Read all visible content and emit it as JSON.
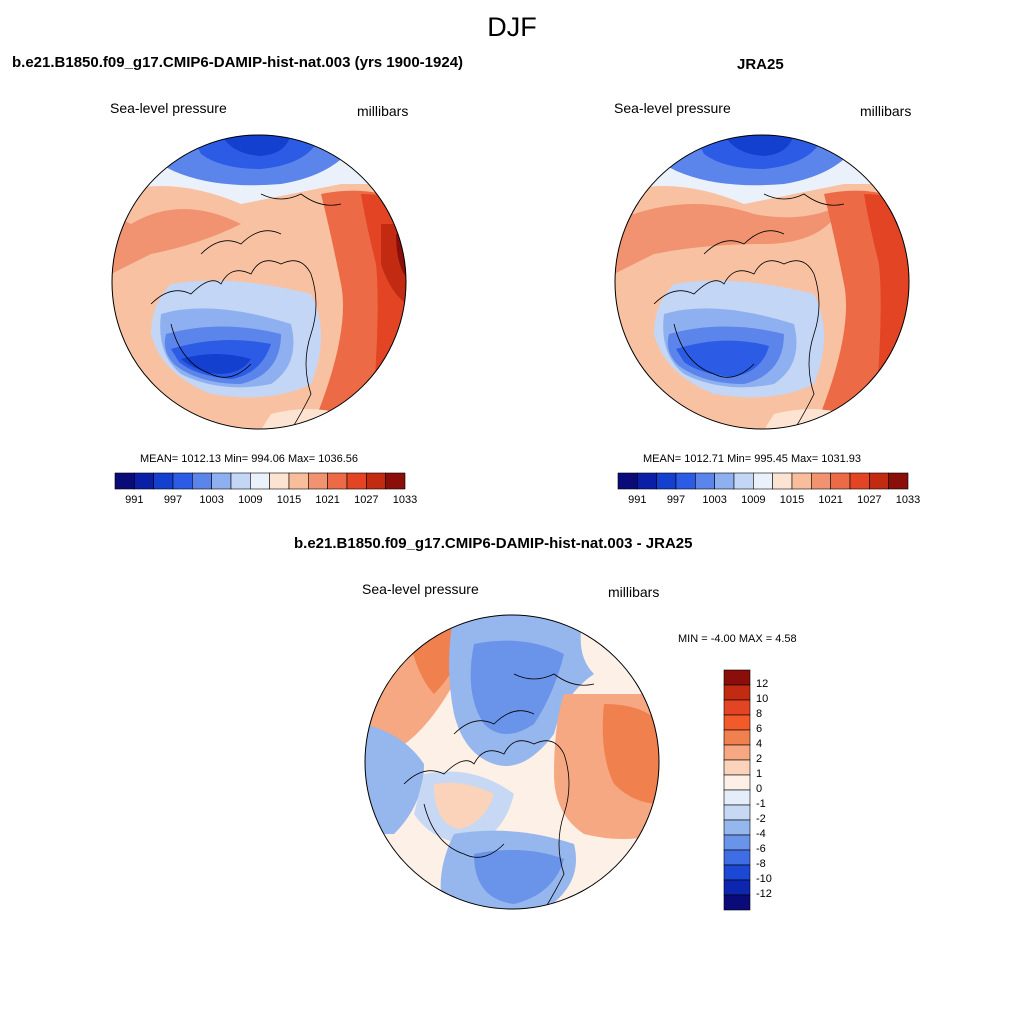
{
  "figure": {
    "title": "DJF"
  },
  "chart_data": [
    {
      "type": "heatmap",
      "title": "b.e21.B1850.f09_g17.CMIP6-DAMIP-hist-nat.003 (yrs 1900-1924)",
      "left_label": "Sea-level pressure",
      "right_label": "millibars",
      "projection": "polar stereographic, North Pole",
      "stats": {
        "mean": "1012.13",
        "min": "994.06",
        "max": "1036.56"
      },
      "stats_text": "MEAN= 1012.13  Min= 994.06  Max= 1036.56",
      "colorbar": {
        "orientation": "horizontal",
        "levels": [
          991,
          994,
          997,
          1000,
          1003,
          1006,
          1009,
          1012,
          1015,
          1018,
          1021,
          1024,
          1027,
          1030,
          1033
        ],
        "tick_labels": [
          "991",
          "997",
          "1003",
          "1009",
          "1015",
          "1021",
          "1027",
          "1033"
        ],
        "colors": [
          "#0a0a78",
          "#0a1ea6",
          "#1440d0",
          "#2c5be6",
          "#5b85ea",
          "#8fb0f0",
          "#c3d6f6",
          "#eaf1fb",
          "#fde3d2",
          "#f8bd9a",
          "#f19270",
          "#ec6a45",
          "#e24424",
          "#c22a12",
          "#8a0e0a"
        ]
      }
    },
    {
      "type": "heatmap",
      "title": "JRA25",
      "left_label": "Sea-level pressure",
      "right_label": "millibars",
      "projection": "polar stereographic, North Pole",
      "stats": {
        "mean": "1012.71",
        "min": "995.45",
        "max": "1031.93"
      },
      "stats_text": "MEAN= 1012.71  Min= 995.45  Max= 1031.93",
      "colorbar": {
        "orientation": "horizontal",
        "levels": [
          991,
          994,
          997,
          1000,
          1003,
          1006,
          1009,
          1012,
          1015,
          1018,
          1021,
          1024,
          1027,
          1030,
          1033
        ],
        "tick_labels": [
          "991",
          "997",
          "1003",
          "1009",
          "1015",
          "1021",
          "1027",
          "1033"
        ],
        "colors": [
          "#0a0a78",
          "#0a1ea6",
          "#1440d0",
          "#2c5be6",
          "#5b85ea",
          "#8fb0f0",
          "#c3d6f6",
          "#eaf1fb",
          "#fde3d2",
          "#f8bd9a",
          "#f19270",
          "#ec6a45",
          "#e24424",
          "#c22a12",
          "#8a0e0a"
        ]
      }
    },
    {
      "type": "heatmap",
      "title": "b.e21.B1850.f09_g17.CMIP6-DAMIP-hist-nat.003 - JRA25",
      "left_label": "Sea-level pressure",
      "right_label": "millibars",
      "projection": "polar stereographic, North Pole",
      "stats": {
        "min": "-4.00",
        "max": "4.58"
      },
      "stats_text": "MIN =  -4.00 MAX =   4.58",
      "colorbar": {
        "orientation": "vertical",
        "levels": [
          -12,
          -10,
          -8,
          -6,
          -4,
          -2,
          -1,
          0,
          1,
          2,
          4,
          6,
          8,
          10,
          12
        ],
        "tick_labels": [
          "12",
          "10",
          "8",
          "6",
          "4",
          "2",
          "1",
          "0",
          "-1",
          "-2",
          "-4",
          "-6",
          "-8",
          "-10",
          "-12"
        ],
        "colors": [
          "#8a0e0a",
          "#c22a12",
          "#e24424",
          "#f25a2a",
          "#f0814f",
          "#f6a882",
          "#fbd3bb",
          "#fdf0e6",
          "#e4edf9",
          "#c6d8f4",
          "#96b6ee",
          "#6a93ea",
          "#3e6de4",
          "#1c48d6",
          "#0c26b0",
          "#0a0a78"
        ]
      }
    }
  ]
}
